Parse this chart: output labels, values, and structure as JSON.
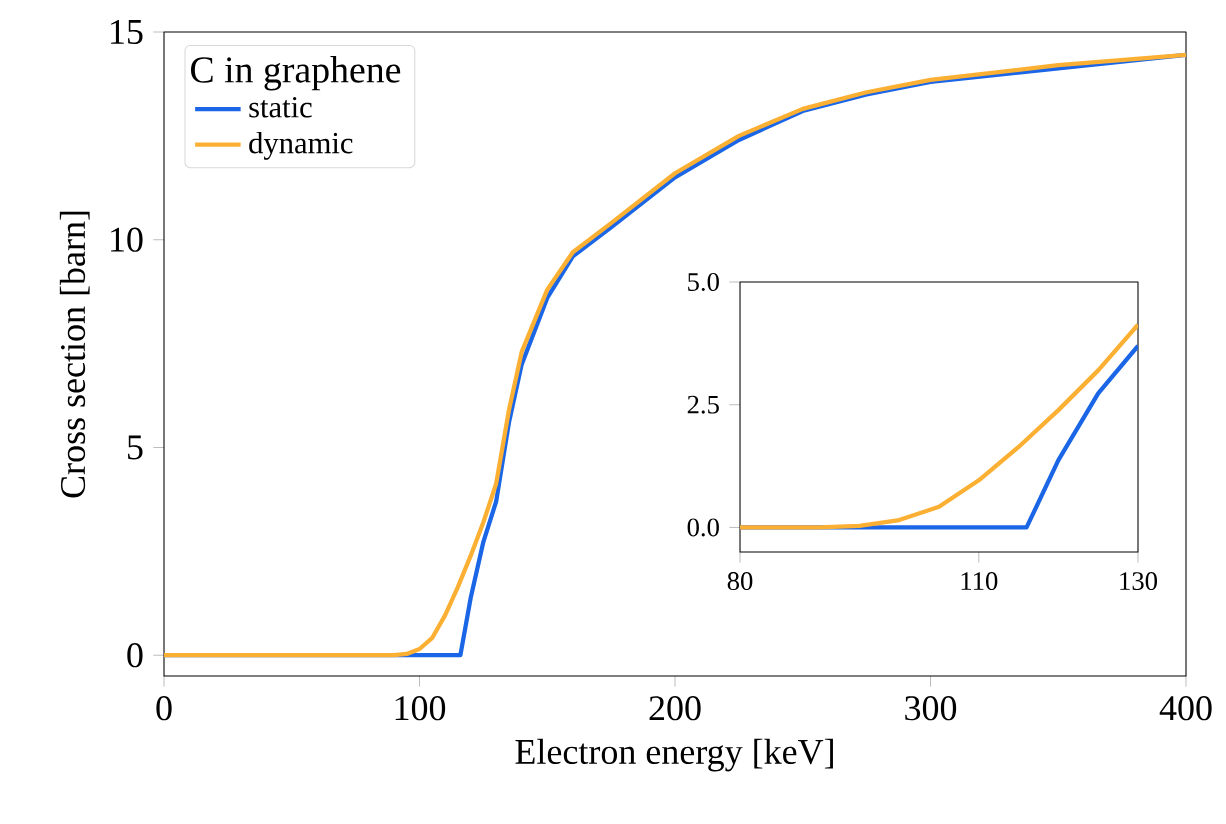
{
  "chart_data": [
    {
      "type": "line",
      "xlabel": "Electron energy [keV]",
      "ylabel": "Cross section [barn]",
      "legend_title": "C in graphene",
      "legend": "top left",
      "line_style": "solid",
      "marker": "none",
      "xlim": [
        0,
        400
      ],
      "ylim": [
        -0.5,
        15
      ],
      "xticks": [
        0,
        100,
        200,
        300,
        400
      ],
      "yticks": [
        0,
        5,
        10,
        15
      ],
      "series": [
        {
          "name": "static",
          "color": "#1a66e6",
          "x": [
            0,
            50,
            100,
            116,
            120,
            125,
            130,
            135,
            140,
            150,
            160,
            175,
            200,
            225,
            250,
            275,
            300,
            350,
            400
          ],
          "values": [
            0,
            0,
            0,
            0,
            1.37,
            2.73,
            3.7,
            5.6,
            7.0,
            8.6,
            9.6,
            10.3,
            11.5,
            12.4,
            13.1,
            13.5,
            13.8,
            null,
            14.45
          ]
        },
        {
          "name": "dynamic",
          "color": "#fbb034",
          "x": [
            0,
            50,
            90,
            95,
            100,
            105,
            110,
            115,
            120,
            125,
            130,
            135,
            140,
            150,
            160,
            175,
            200,
            225,
            250,
            275,
            300,
            350,
            400
          ],
          "values": [
            0,
            0,
            0,
            0.03,
            0.15,
            0.42,
            0.96,
            1.64,
            2.39,
            3.2,
            4.13,
            5.9,
            7.3,
            8.8,
            9.7,
            10.4,
            11.6,
            12.5,
            13.15,
            13.55,
            13.85,
            14.2,
            14.45
          ]
        }
      ]
    },
    {
      "type": "line",
      "line_style": "solid",
      "marker": "none",
      "xlim": [
        80,
        130
      ],
      "ylim": [
        -0.5,
        5.0
      ],
      "xticks": [
        80,
        110,
        130
      ],
      "yticks": [
        {
          "value": 0,
          "label": "0.0"
        },
        {
          "value": 2.5,
          "label": "2.5"
        },
        {
          "value": 5.0,
          "label": "5.0"
        }
      ],
      "series": [
        {
          "color": "#1a66e6",
          "x": [
            80,
            90,
            100,
            110,
            116,
            120,
            125,
            130
          ],
          "values": [
            0,
            0,
            0,
            0,
            0,
            1.37,
            2.73,
            3.7
          ]
        },
        {
          "color": "#fbb034",
          "x": [
            80,
            90,
            95,
            100,
            105,
            110,
            115,
            120,
            125,
            130
          ],
          "values": [
            0,
            0,
            0.03,
            0.15,
            0.42,
            0.96,
            1.64,
            2.39,
            3.2,
            4.13
          ]
        }
      ]
    }
  ]
}
